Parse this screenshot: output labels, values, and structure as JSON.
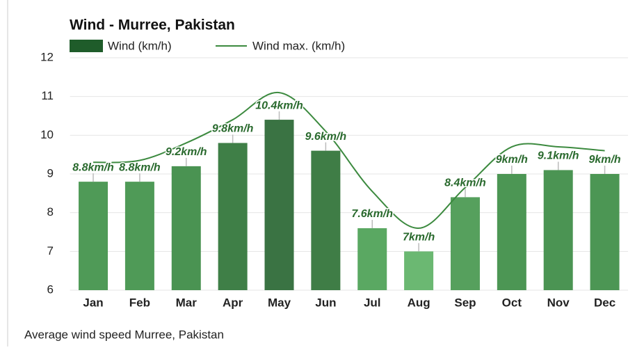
{
  "chart_data": {
    "type": "bar",
    "title": "Wind - Murree, Pakistan",
    "caption": "Average wind speed Murree, Pakistan",
    "categories": [
      "Jan",
      "Feb",
      "Mar",
      "Apr",
      "May",
      "Jun",
      "Jul",
      "Aug",
      "Sep",
      "Oct",
      "Nov",
      "Dec"
    ],
    "series": [
      {
        "name": "Wind (km/h)",
        "color": "#1f5c2a",
        "type": "bar",
        "colors": [
          "#4f9a57",
          "#4f9a57",
          "#4a9352",
          "#3f7f47",
          "#3a7343",
          "#3f7d46",
          "#5aa862",
          "#6bb872",
          "#56a05d",
          "#4c9654",
          "#4b9453",
          "#4c9654"
        ],
        "values": [
          8.8,
          8.8,
          9.2,
          9.8,
          10.4,
          9.6,
          7.6,
          7,
          8.4,
          9,
          9.1,
          9
        ],
        "value_labels": [
          "8.8km/h",
          "8.8km/h",
          "9.2km/h",
          "9.8km/h",
          "10.4km/h",
          "9.6km/h",
          "7.6km/h",
          "7km/h",
          "8.4km/h",
          "9km/h",
          "9.1km/h",
          "9km/h"
        ]
      },
      {
        "name": "Wind max. (km/h)",
        "color": "#3c8a3f",
        "type": "line",
        "values": [
          9.3,
          9.35,
          9.8,
          10.4,
          11.1,
          10.1,
          8.55,
          7.6,
          8.65,
          9.7,
          9.7,
          9.6
        ]
      }
    ],
    "ylim": [
      6,
      12
    ],
    "yticks": [
      6,
      7,
      8,
      9,
      10,
      11,
      12
    ],
    "grid": true
  }
}
